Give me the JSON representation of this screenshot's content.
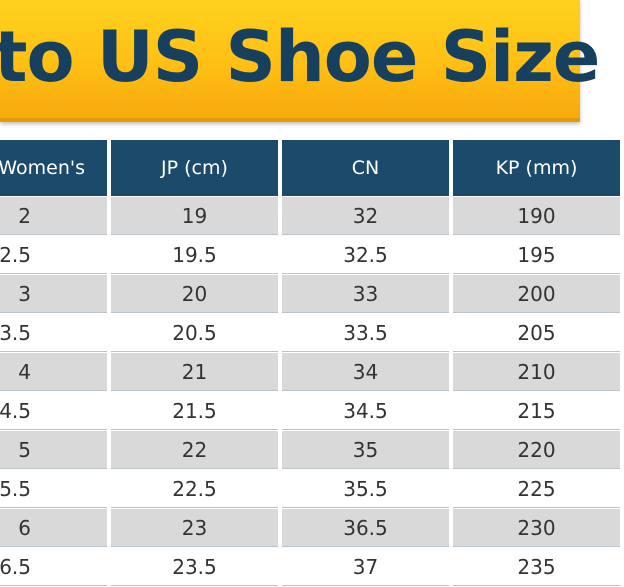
{
  "banner": {
    "title": "to US Shoe Size",
    "colors": {
      "background": "#ffc315",
      "text": "#17405e"
    }
  },
  "table": {
    "header_color": "#1b4a6b",
    "stripe_color": "#d9d9d9",
    "columns": [
      "Women's",
      "JP (cm)",
      "CN",
      "KP (mm)"
    ],
    "rows": [
      [
        "2",
        "19",
        "32",
        "190"
      ],
      [
        "2.5",
        "19.5",
        "32.5",
        "195"
      ],
      [
        "3",
        "20",
        "33",
        "200"
      ],
      [
        "3.5",
        "20.5",
        "33.5",
        "205"
      ],
      [
        "4",
        "21",
        "34",
        "210"
      ],
      [
        "4.5",
        "21.5",
        "34.5",
        "215"
      ],
      [
        "5",
        "22",
        "35",
        "220"
      ],
      [
        "5.5",
        "22.5",
        "35.5",
        "225"
      ],
      [
        "6",
        "23",
        "36.5",
        "230"
      ],
      [
        "6.5",
        "23.5",
        "37",
        "235"
      ]
    ]
  }
}
